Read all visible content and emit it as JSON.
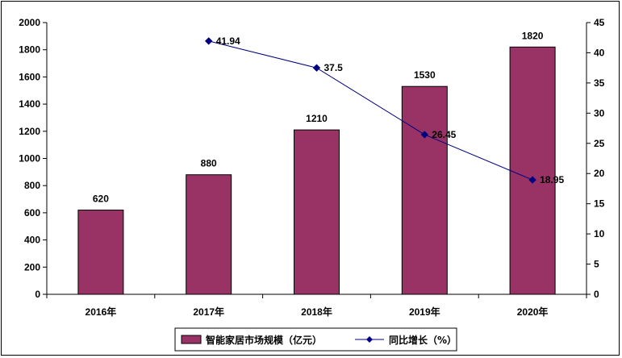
{
  "chart_data": {
    "type": "bar",
    "categories": [
      "2016年",
      "2017年",
      "2018年",
      "2019年",
      "2020年"
    ],
    "series": [
      {
        "name": "智能家居市场规模（亿元）",
        "type": "bar",
        "axis": "left",
        "values": [
          620,
          880,
          1210,
          1530,
          1820
        ],
        "color": "#993366"
      },
      {
        "name": "同比增长（%）",
        "type": "line",
        "axis": "right",
        "values": [
          null,
          41.94,
          37.5,
          26.45,
          18.95
        ],
        "color": "#000080"
      }
    ],
    "data_labels": {
      "bars": [
        "620",
        "880",
        "1210",
        "1530",
        "1820"
      ],
      "line": [
        "",
        "41.94",
        "37.5",
        "26.45",
        "18.95"
      ]
    },
    "y_left": {
      "min": 0,
      "max": 2000,
      "ticks": [
        "0",
        "200",
        "400",
        "600",
        "800",
        "1000",
        "1200",
        "1400",
        "1600",
        "1800",
        "2000"
      ]
    },
    "y_right": {
      "min": 0,
      "max": 45,
      "ticks": [
        "0",
        "5",
        "10",
        "15",
        "20",
        "25",
        "30",
        "35",
        "40",
        "45"
      ]
    },
    "legend": {
      "position": "bottom",
      "items": [
        {
          "label": "智能家居市场规模（亿元）",
          "kind": "bar"
        },
        {
          "label": "同比增长（%）",
          "kind": "line"
        }
      ]
    },
    "grid": false
  }
}
